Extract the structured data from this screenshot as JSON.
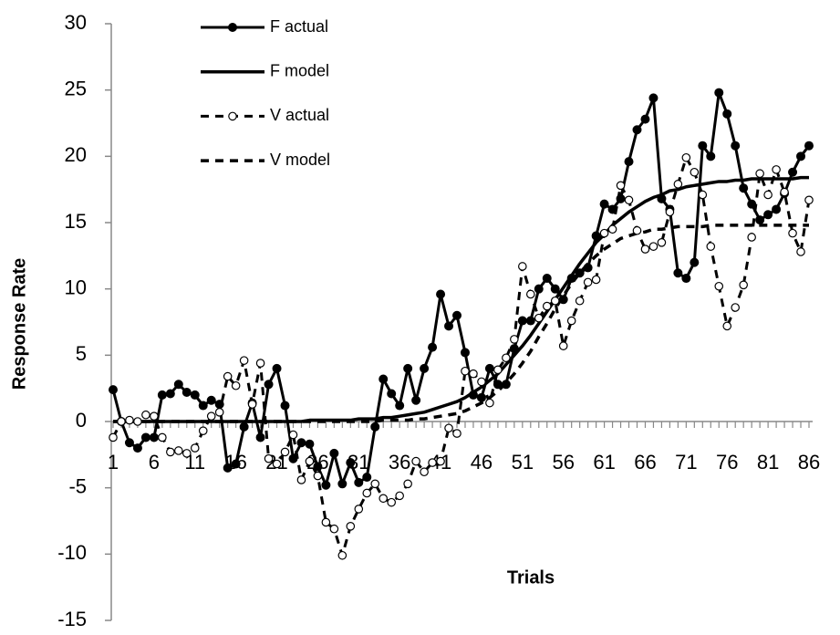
{
  "chart_data": {
    "type": "line",
    "x_label": "Trials",
    "y_label": "Response Rate",
    "categories": [
      "1",
      null,
      null,
      null,
      null,
      "6",
      null,
      null,
      null,
      null,
      "11",
      null,
      null,
      null,
      null,
      "16",
      null,
      null,
      null,
      null,
      "21",
      null,
      null,
      null,
      null,
      "26",
      null,
      null,
      null,
      null,
      "31",
      null,
      null,
      null,
      null,
      "36",
      null,
      null,
      null,
      null,
      "41",
      null,
      null,
      null,
      null,
      "46",
      null,
      null,
      null,
      null,
      "51",
      null,
      null,
      null,
      null,
      "56",
      null,
      null,
      null,
      null,
      "61",
      null,
      null,
      null,
      null,
      "66",
      null,
      null,
      null,
      null,
      "71",
      null,
      null,
      null,
      null,
      "76",
      null,
      null,
      null,
      null,
      "81",
      null,
      null,
      null,
      null,
      "86"
    ],
    "ylim": [
      -15,
      30
    ],
    "yticks": [
      -15,
      -10,
      -5,
      0,
      5,
      10,
      15,
      20,
      25,
      30
    ],
    "grid": false,
    "legend": "top-left",
    "series": [
      {
        "name": "F actual",
        "color": "#000000",
        "line_style": "solid",
        "marker": "filled",
        "values": [
          2.4,
          0.0,
          -1.6,
          -2.0,
          -1.2,
          -1.2,
          2.0,
          2.1,
          2.8,
          2.2,
          2.0,
          1.2,
          1.6,
          1.3,
          -3.5,
          -3.2,
          -0.4,
          1.4,
          -1.2,
          2.8,
          4.0,
          1.2,
          -2.8,
          -1.6,
          -1.7,
          -3.4,
          -4.8,
          -2.4,
          -4.7,
          -3.1,
          -4.6,
          -4.2,
          -0.4,
          3.2,
          2.1,
          1.2,
          4.0,
          1.6,
          4.0,
          5.6,
          9.6,
          7.2,
          8.0,
          5.2,
          2.0,
          1.8,
          4.0,
          2.8,
          2.8,
          5.5,
          7.6,
          7.6,
          10.0,
          10.8,
          10.0,
          9.2,
          10.8,
          11.2,
          11.6,
          14.0,
          16.4,
          16.0,
          16.8,
          19.6,
          22.0,
          22.8,
          24.4,
          16.8,
          16.0,
          11.2,
          10.8,
          12.0,
          20.8,
          20.0,
          24.8,
          23.2,
          20.8,
          17.6,
          16.4,
          15.2,
          15.6,
          16.0,
          17.2,
          18.8,
          20.0,
          20.8
        ]
      },
      {
        "name": "F model",
        "color": "#000000",
        "line_style": "solid",
        "marker": "none",
        "values": [
          0.0,
          0.0,
          0.0,
          0.0,
          0.0,
          0.0,
          0.0,
          0.0,
          0.0,
          0.0,
          0.0,
          0.0,
          0.0,
          0.0,
          0.0,
          0.0,
          0.0,
          0.0,
          0.0,
          0.0,
          0.0,
          0.0,
          0.0,
          0.0,
          0.1,
          0.1,
          0.1,
          0.1,
          0.1,
          0.1,
          0.2,
          0.2,
          0.2,
          0.3,
          0.3,
          0.4,
          0.5,
          0.6,
          0.7,
          0.9,
          1.1,
          1.3,
          1.5,
          1.8,
          2.2,
          2.6,
          3.1,
          3.6,
          4.3,
          5.0,
          5.7,
          6.5,
          7.4,
          8.3,
          9.2,
          10.1,
          11.0,
          11.9,
          12.7,
          13.5,
          14.1,
          14.8,
          15.3,
          15.8,
          16.2,
          16.6,
          16.9,
          17.1,
          17.4,
          17.5,
          17.7,
          17.8,
          17.9,
          18.0,
          18.1,
          18.1,
          18.2,
          18.2,
          18.3,
          18.3,
          18.3,
          18.3,
          18.3,
          18.3,
          18.4,
          18.4
        ]
      },
      {
        "name": "V actual",
        "color": "#000000",
        "line_style": "dashed",
        "marker": "open",
        "values": [
          -1.2,
          0.0,
          0.1,
          0.0,
          0.5,
          0.4,
          -1.2,
          -2.3,
          -2.2,
          -2.4,
          -2.0,
          -0.7,
          0.4,
          0.7,
          3.4,
          2.7,
          4.6,
          1.3,
          4.4,
          -2.8,
          -3.2,
          -2.3,
          -1.0,
          -4.4,
          -3.0,
          -4.1,
          -7.6,
          -8.1,
          -10.1,
          -7.9,
          -6.6,
          -5.4,
          -4.7,
          -5.8,
          -6.1,
          -5.6,
          -4.7,
          -3.0,
          -3.8,
          -3.1,
          -3.0,
          -0.5,
          -0.9,
          3.8,
          3.6,
          3.0,
          1.4,
          3.9,
          4.8,
          6.2,
          11.7,
          9.6,
          7.8,
          8.7,
          9.1,
          5.7,
          7.6,
          9.1,
          10.5,
          10.7,
          14.2,
          14.5,
          17.8,
          16.7,
          14.4,
          13.0,
          13.2,
          13.5,
          15.8,
          17.9,
          19.9,
          18.8,
          17.1,
          13.2,
          10.2,
          7.2,
          8.6,
          10.3,
          13.9,
          18.7,
          17.1,
          19.0,
          17.3,
          14.2,
          12.8,
          16.7
        ]
      },
      {
        "name": "V model",
        "color": "#000000",
        "line_style": "dashed",
        "marker": "none",
        "values": [
          0.0,
          0.0,
          0.0,
          0.0,
          0.0,
          0.0,
          0.0,
          0.0,
          0.0,
          0.0,
          0.0,
          0.0,
          0.0,
          0.0,
          0.0,
          0.0,
          0.0,
          0.0,
          0.0,
          0.0,
          0.0,
          0.0,
          0.0,
          0.0,
          0.0,
          0.0,
          0.0,
          0.0,
          0.0,
          0.0,
          0.0,
          0.0,
          0.0,
          0.1,
          0.1,
          0.1,
          0.1,
          0.2,
          0.2,
          0.3,
          0.4,
          0.5,
          0.6,
          0.8,
          1.1,
          1.4,
          1.8,
          2.3,
          2.9,
          3.6,
          4.4,
          5.3,
          6.4,
          7.4,
          8.5,
          9.5,
          10.4,
          11.2,
          11.9,
          12.5,
          13.0,
          13.4,
          13.8,
          14.0,
          14.2,
          14.3,
          14.5,
          14.5,
          14.6,
          14.7,
          14.7,
          14.7,
          14.7,
          14.8,
          14.8,
          14.8,
          14.8,
          14.8,
          14.8,
          14.8,
          14.8,
          14.8,
          14.8,
          14.8,
          14.8,
          14.8
        ]
      }
    ]
  }
}
